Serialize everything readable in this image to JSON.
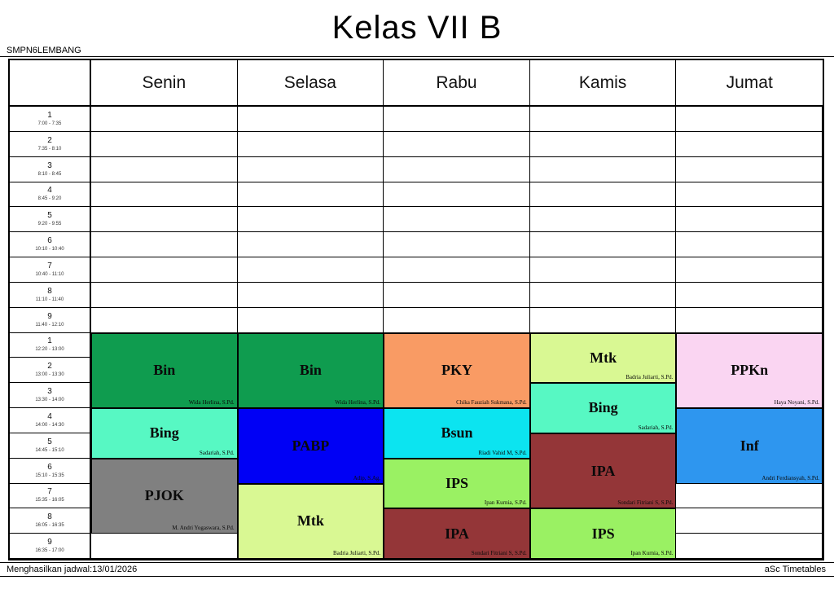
{
  "page": {
    "title": "Kelas VII B",
    "school": "SMPN6LEMBANG",
    "footer_left": "Menghasilkan jadwal:13/01/2026",
    "footer_right": "aSc Timetables"
  },
  "timetable": {
    "days": [
      "Senin",
      "Selasa",
      "Rabu",
      "Kamis",
      "Jumat"
    ],
    "periods": [
      {
        "num": "1",
        "time": "7:00 - 7:35"
      },
      {
        "num": "2",
        "time": "7:35 - 8:10"
      },
      {
        "num": "3",
        "time": "8:10 - 8:45"
      },
      {
        "num": "4",
        "time": "8:45 - 9:20"
      },
      {
        "num": "5",
        "time": "9:20 - 9:55"
      },
      {
        "num": "6",
        "time": "10:10 - 10:40"
      },
      {
        "num": "7",
        "time": "10:40 - 11:10"
      },
      {
        "num": "8",
        "time": "11:10 - 11:40"
      },
      {
        "num": "9",
        "time": "11:40 - 12:10"
      },
      {
        "num": "1",
        "time": "12:20 - 13:00"
      },
      {
        "num": "2",
        "time": "13:00 - 13:30"
      },
      {
        "num": "3",
        "time": "13:30 - 14:00"
      },
      {
        "num": "4",
        "time": "14:00 - 14:30"
      },
      {
        "num": "5",
        "time": "14:45 - 15:10"
      },
      {
        "num": "6",
        "time": "15:10 - 15:35"
      },
      {
        "num": "7",
        "time": "15:35 - 16:05"
      },
      {
        "num": "8",
        "time": "16:05 - 16:35"
      },
      {
        "num": "9",
        "time": "16:35 - 17:00"
      }
    ],
    "blocks": [
      {
        "day": 0,
        "start": 9,
        "span": 3,
        "subject": "Bin",
        "teacher": "Wida Herlina, S.Pd.",
        "color": "#0f9c4f"
      },
      {
        "day": 0,
        "start": 12,
        "span": 2,
        "subject": "Bing",
        "teacher": "Sadariah, S.Pd.",
        "color": "#57f8c3"
      },
      {
        "day": 0,
        "start": 14,
        "span": 3,
        "subject": "PJOK",
        "teacher": "M. Andri Yogaswara, S.Pd.",
        "color": "#808080"
      },
      {
        "day": 1,
        "start": 9,
        "span": 3,
        "subject": "Bin",
        "teacher": "Wida Herlina, S.Pd.",
        "color": "#0f9c4f"
      },
      {
        "day": 1,
        "start": 12,
        "span": 3,
        "subject": "PABP",
        "teacher": "Adip, S.Ag.",
        "color": "#0000f5"
      },
      {
        "day": 1,
        "start": 15,
        "span": 3,
        "subject": "Mtk",
        "teacher": "Badria Juliarti, S.Pd.",
        "color": "#d9f893"
      },
      {
        "day": 2,
        "start": 9,
        "span": 3,
        "subject": "PKY",
        "teacher": "Chika Fauziah Sukmana, S.Pd.",
        "color": "#f99b64"
      },
      {
        "day": 2,
        "start": 12,
        "span": 2,
        "subject": "Bsun",
        "teacher": "Riadi Vahid M, S.Pd.",
        "color": "#0ce4f0"
      },
      {
        "day": 2,
        "start": 14,
        "span": 2,
        "subject": "IPS",
        "teacher": "Ipan Kurnia, S.Pd.",
        "color": "#9af163"
      },
      {
        "day": 2,
        "start": 16,
        "span": 2,
        "subject": "IPA",
        "teacher": "Sondari Fitriani S, S.Pd.",
        "color": "#943638"
      },
      {
        "day": 3,
        "start": 9,
        "span": 2,
        "subject": "Mtk",
        "teacher": "Badria Juliarti, S.Pd.",
        "color": "#d9f893"
      },
      {
        "day": 3,
        "start": 11,
        "span": 2,
        "subject": "Bing",
        "teacher": "Sadariah, S.Pd.",
        "color": "#57f8c3"
      },
      {
        "day": 3,
        "start": 13,
        "span": 3,
        "subject": "IPA",
        "teacher": "Sondari Fitriani S, S.Pd.",
        "color": "#943638"
      },
      {
        "day": 3,
        "start": 16,
        "span": 2,
        "subject": "IPS",
        "teacher": "Ipan Kurnia, S.Pd.",
        "color": "#9af163"
      },
      {
        "day": 4,
        "start": 9,
        "span": 3,
        "subject": "PPKn",
        "teacher": "Haya Noyani, S.Pd.",
        "color": "#fad5f2"
      },
      {
        "day": 4,
        "start": 12,
        "span": 3,
        "subject": "Inf",
        "teacher": "Andri Ferdiansyah, S.Pd.",
        "color": "#2e96ef"
      }
    ]
  }
}
